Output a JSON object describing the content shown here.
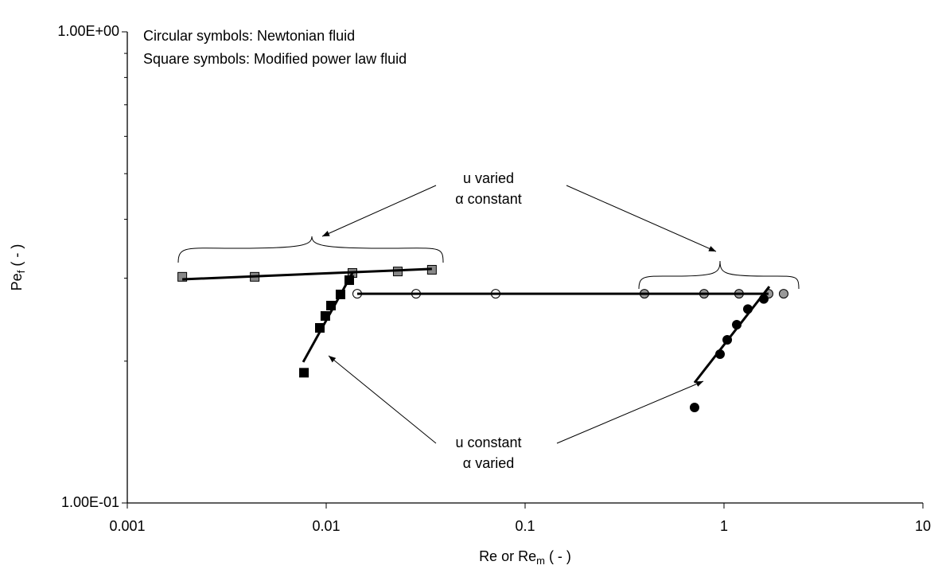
{
  "chart_data": {
    "type": "scatter",
    "annotations": [
      "Circular symbols: Newtonian fluid",
      "Square symbols: Modified power law fluid",
      "u varied",
      "α constant",
      "u constant",
      "α varied"
    ],
    "xlabel": {
      "main": "Re or Re",
      "subscript": "m",
      "unit": " ( - )"
    },
    "ylabel": {
      "main": "Pe",
      "subscript": "f",
      "unit": " ( - )"
    },
    "xlog": true,
    "ylog": true,
    "xlim": [
      0.001,
      10
    ],
    "ylim": [
      0.1,
      1
    ],
    "xticks": [
      0.001,
      0.01,
      0.1,
      1,
      10
    ],
    "yticks": [
      {
        "value": 0.1,
        "label": "1.00E-01"
      },
      {
        "value": 1,
        "label": "1.00E+00"
      }
    ],
    "yminorticks": [
      0.2,
      0.3,
      0.4,
      0.5,
      0.6,
      0.7,
      0.8,
      0.9
    ],
    "series": [
      {
        "marker": "square",
        "color": "#888888",
        "x": [
          0.00189,
          0.00437,
          0.01355,
          0.0229,
          0.034
        ],
        "values": [
          0.302,
          0.302,
          0.3077,
          0.31,
          0.3126
        ]
      },
      {
        "marker": "square",
        "color": "#000000",
        "x": [
          0.00773,
          0.00929,
          0.0099,
          0.01057,
          0.0118,
          0.01306
        ],
        "values": [
          0.189,
          0.2353,
          0.2494,
          0.2624,
          0.2771,
          0.2971
        ]
      },
      {
        "marker": "circle",
        "color": "#ffffff",
        "x": [
          0.01432,
          0.0283,
          0.0711
        ],
        "values": [
          0.278,
          0.278,
          0.278
        ]
      },
      {
        "marker": "circle",
        "color": "#999999",
        "x": [
          0.398,
          0.794,
          1.19,
          1.675,
          1.995
        ],
        "values": [
          0.278,
          0.278,
          0.278,
          0.278,
          0.278
        ]
      },
      {
        "marker": "circle",
        "color": "#000000",
        "x": [
          0.711,
          0.955,
          1.038,
          1.159,
          1.318,
          1.585
        ],
        "values": [
          0.1595,
          0.207,
          0.222,
          0.239,
          0.258,
          0.271
        ]
      },
      {
        "line": true,
        "color": "#000000",
        "x": [
          0.00189,
          0.034
        ],
        "values": [
          0.2983,
          0.3139
        ]
      },
      {
        "line": true,
        "color": "#000000",
        "x": [
          0.00766,
          0.01355
        ],
        "values": [
          0.1991,
          0.3077
        ]
      },
      {
        "line": true,
        "color": "#000000",
        "x": [
          0.01432,
          1.675
        ],
        "values": [
          0.278,
          0.278
        ]
      },
      {
        "line": true,
        "color": "#000000",
        "x": [
          0.711,
          1.69
        ],
        "values": [
          0.18,
          0.288
        ]
      }
    ]
  }
}
